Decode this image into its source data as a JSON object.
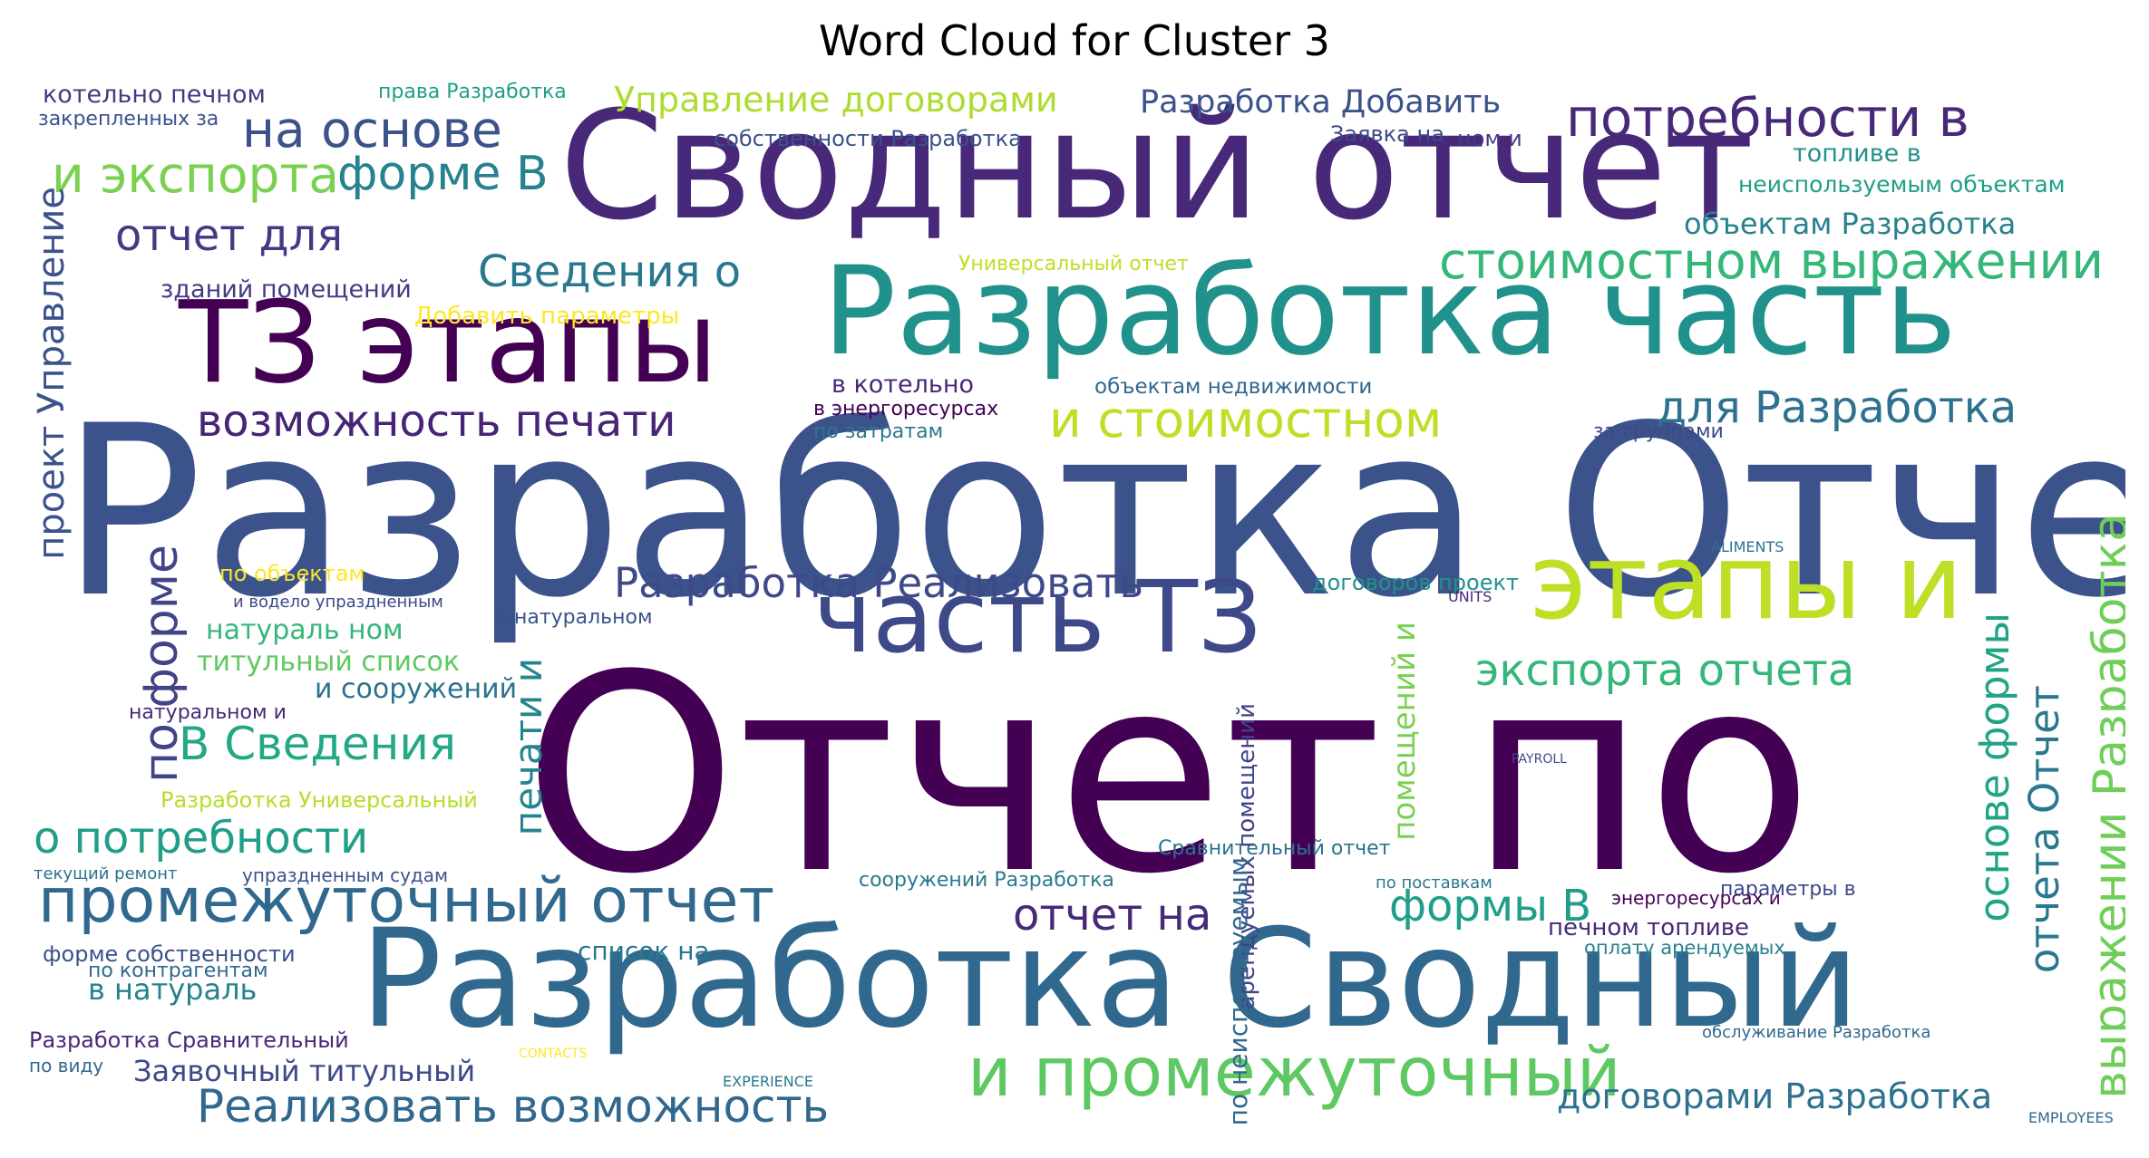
{
  "chart_data": {
    "type": "wordcloud",
    "title": "Word Cloud for Cluster 3",
    "colormap": "viridis",
    "background": "#ffffff",
    "words": [
      {
        "text": "Отчет по",
        "weight": 100,
        "color": "#440154"
      },
      {
        "text": "Разработка Отчет",
        "weight": 91,
        "color": "#3b528b"
      },
      {
        "text": "Сводный отчет",
        "weight": 72,
        "color": "#482878"
      },
      {
        "text": "Разработка Сводный",
        "weight": 70,
        "color": "#31688e"
      },
      {
        "text": "Разработка часть",
        "weight": 64,
        "color": "#21918c"
      },
      {
        "text": "ТЗ этапы",
        "weight": 62,
        "color": "#440154"
      },
      {
        "text": "часть ТЗ",
        "weight": 54,
        "color": "#3e4989"
      },
      {
        "text": "этапы и",
        "weight": 55,
        "color": "#bddf26"
      },
      {
        "text": "и промежуточный",
        "weight": 34,
        "color": "#5ec962"
      },
      {
        "text": "промежуточный отчет",
        "weight": 30,
        "color": "#31688e"
      },
      {
        "text": "потребности в",
        "weight": 26,
        "color": "#482878"
      },
      {
        "text": "стоимостном выражении",
        "weight": 25,
        "color": "#35b779"
      },
      {
        "text": "и стоимостном",
        "weight": 25,
        "color": "#bddf26"
      },
      {
        "text": "выражении Разработка",
        "weight": 24,
        "color": "#6ece58"
      },
      {
        "text": "Реализовать возможность",
        "weight": 24,
        "color": "#31688e"
      },
      {
        "text": "Разработка Реализовать",
        "weight": 23,
        "color": "#3e4989"
      },
      {
        "text": "на основе",
        "weight": 26,
        "color": "#3b528b"
      },
      {
        "text": "и экспорта",
        "weight": 26,
        "color": "#7ad151"
      },
      {
        "text": "форме В",
        "weight": 26,
        "color": "#26828e"
      },
      {
        "text": "отчет для",
        "weight": 24,
        "color": "#443983"
      },
      {
        "text": "Сведения о",
        "weight": 24,
        "color": "#2a788e"
      },
      {
        "text": "для Разработка",
        "weight": 24,
        "color": "#2c728e"
      },
      {
        "text": "экспорта отчета",
        "weight": 24,
        "color": "#35b779"
      },
      {
        "text": "возможность печати",
        "weight": 23,
        "color": "#482475"
      },
      {
        "text": "о потребности",
        "weight": 24,
        "color": "#1f9e89"
      },
      {
        "text": "В Сведения",
        "weight": 24,
        "color": "#22a884"
      },
      {
        "text": "по форме",
        "weight": 26,
        "color": "#414487"
      },
      {
        "text": "отчет на",
        "weight": 23,
        "color": "#482878"
      },
      {
        "text": "формы В",
        "weight": 23,
        "color": "#1f9e89"
      },
      {
        "text": "договорами Разработка",
        "weight": 19,
        "color": "#2c728e"
      },
      {
        "text": "проект Управление",
        "weight": 21,
        "color": "#3b528b"
      },
      {
        "text": "основе формы",
        "weight": 22,
        "color": "#20a486"
      },
      {
        "text": "отчета Отчет",
        "weight": 22,
        "color": "#2a788e"
      },
      {
        "text": "печати и",
        "weight": 21,
        "color": "#25858e"
      },
      {
        "text": "Управление договорами",
        "weight": 18,
        "color": "#addc30"
      },
      {
        "text": "Разработка Добавить",
        "weight": 16,
        "color": "#3b528b"
      },
      {
        "text": "объектам Разработка",
        "weight": 15,
        "color": "#26828e"
      },
      {
        "text": "титульный список",
        "weight": 14,
        "color": "#5ec962"
      },
      {
        "text": "натураль ном",
        "weight": 13,
        "color": "#35b779"
      },
      {
        "text": "и сооружений",
        "weight": 14,
        "color": "#2c728e"
      },
      {
        "text": "Заявочный титульный",
        "weight": 15,
        "color": "#3e4989"
      },
      {
        "text": "список на",
        "weight": 13,
        "color": "#2a788e"
      },
      {
        "text": "в натураль",
        "weight": 15,
        "color": "#26828e"
      },
      {
        "text": "неиспользуемым объектам",
        "weight": 12,
        "color": "#1f9e89"
      },
      {
        "text": "топливе в",
        "weight": 13,
        "color": "#21918c"
      },
      {
        "text": "объектам недвижимости",
        "weight": 12,
        "color": "#31688e"
      },
      {
        "text": "в котельно",
        "weight": 13,
        "color": "#482878"
      },
      {
        "text": "зданий помещений",
        "weight": 13,
        "color": "#443983"
      },
      {
        "text": "Добавить параметры",
        "weight": 13,
        "color": "#fde725"
      },
      {
        "text": "котельно печном",
        "weight": 13,
        "color": "#443983"
      },
      {
        "text": "собственности Разработка",
        "weight": 12,
        "color": "#3b528b"
      },
      {
        "text": "Разработка Универсальный",
        "weight": 11,
        "color": "#b5de2b"
      },
      {
        "text": "Сравнительный отчет",
        "weight": 11,
        "color": "#2c728e"
      },
      {
        "text": "параметры в",
        "weight": 11,
        "color": "#3e4989"
      },
      {
        "text": "печном топливе",
        "weight": 12,
        "color": "#482878"
      },
      {
        "text": "энергоресурсах и",
        "weight": 11,
        "color": "#440154"
      },
      {
        "text": "оплату арендуемых",
        "weight": 11,
        "color": "#26828e"
      },
      {
        "text": "форме собственности",
        "weight": 12,
        "color": "#3b528b"
      },
      {
        "text": "Разработка Сравнительный",
        "weight": 11,
        "color": "#482878"
      },
      {
        "text": "по контрагентам",
        "weight": 11,
        "color": "#31688e"
      },
      {
        "text": "сооружений Разработка",
        "weight": 11,
        "color": "#2a788e"
      },
      {
        "text": "помещений и",
        "weight": 13,
        "color": "#7ad151"
      },
      {
        "text": "арендуемых помещений",
        "weight": 11,
        "color": "#414487"
      },
      {
        "text": "по неиспользуемым",
        "weight": 12,
        "color": "#31688e"
      },
      {
        "text": "договоров проект",
        "weight": 11,
        "color": "#21918c"
      },
      {
        "text": "Заявка на",
        "weight": 11,
        "color": "#3e4989"
      },
      {
        "text": "ном и",
        "weight": 11,
        "color": "#443983"
      },
      {
        "text": "Универсальный отчет",
        "weight": 10,
        "color": "#bddf26"
      },
      {
        "text": "в натуральном",
        "weight": 10,
        "color": "#3b528b"
      },
      {
        "text": "по затратам",
        "weight": 9,
        "color": "#2a788e"
      },
      {
        "text": "в энергоресурсах",
        "weight": 10,
        "color": "#440154"
      },
      {
        "text": "права Разработка",
        "weight": 9,
        "color": "#1f9e89"
      },
      {
        "text": "закрепленных за",
        "weight": 10,
        "color": "#3b528b"
      },
      {
        "text": "натуральном и",
        "weight": 10,
        "color": "#482878"
      },
      {
        "text": "по объектам",
        "weight": 9,
        "color": "#fde725"
      },
      {
        "text": "и водело упраздненным",
        "weight": 8,
        "color": "#3e4989"
      },
      {
        "text": "текущий ремонт",
        "weight": 8,
        "color": "#2c728e"
      },
      {
        "text": "упраздненным судам",
        "weight": 8,
        "color": "#3b528b"
      },
      {
        "text": "за группами",
        "weight": 9,
        "color": "#3e4989"
      },
      {
        "text": "по поставкам",
        "weight": 8,
        "color": "#2a788e"
      },
      {
        "text": "по виду",
        "weight": 8,
        "color": "#31688e"
      },
      {
        "text": "обслуживание Разработка",
        "weight": 8,
        "color": "#31688e"
      },
      {
        "text": "ALIMENTS",
        "weight": 6,
        "color": "#2c728e"
      },
      {
        "text": "UNITS",
        "weight": 6,
        "color": "#482878"
      },
      {
        "text": "PAYROLL",
        "weight": 5,
        "color": "#3e4989"
      },
      {
        "text": "EXPERIENCE",
        "weight": 6,
        "color": "#2a788e"
      },
      {
        "text": "EMPLOYEES",
        "weight": 6,
        "color": "#31688e"
      },
      {
        "text": "CONTACTS",
        "weight": 5,
        "color": "#fde725"
      }
    ]
  }
}
